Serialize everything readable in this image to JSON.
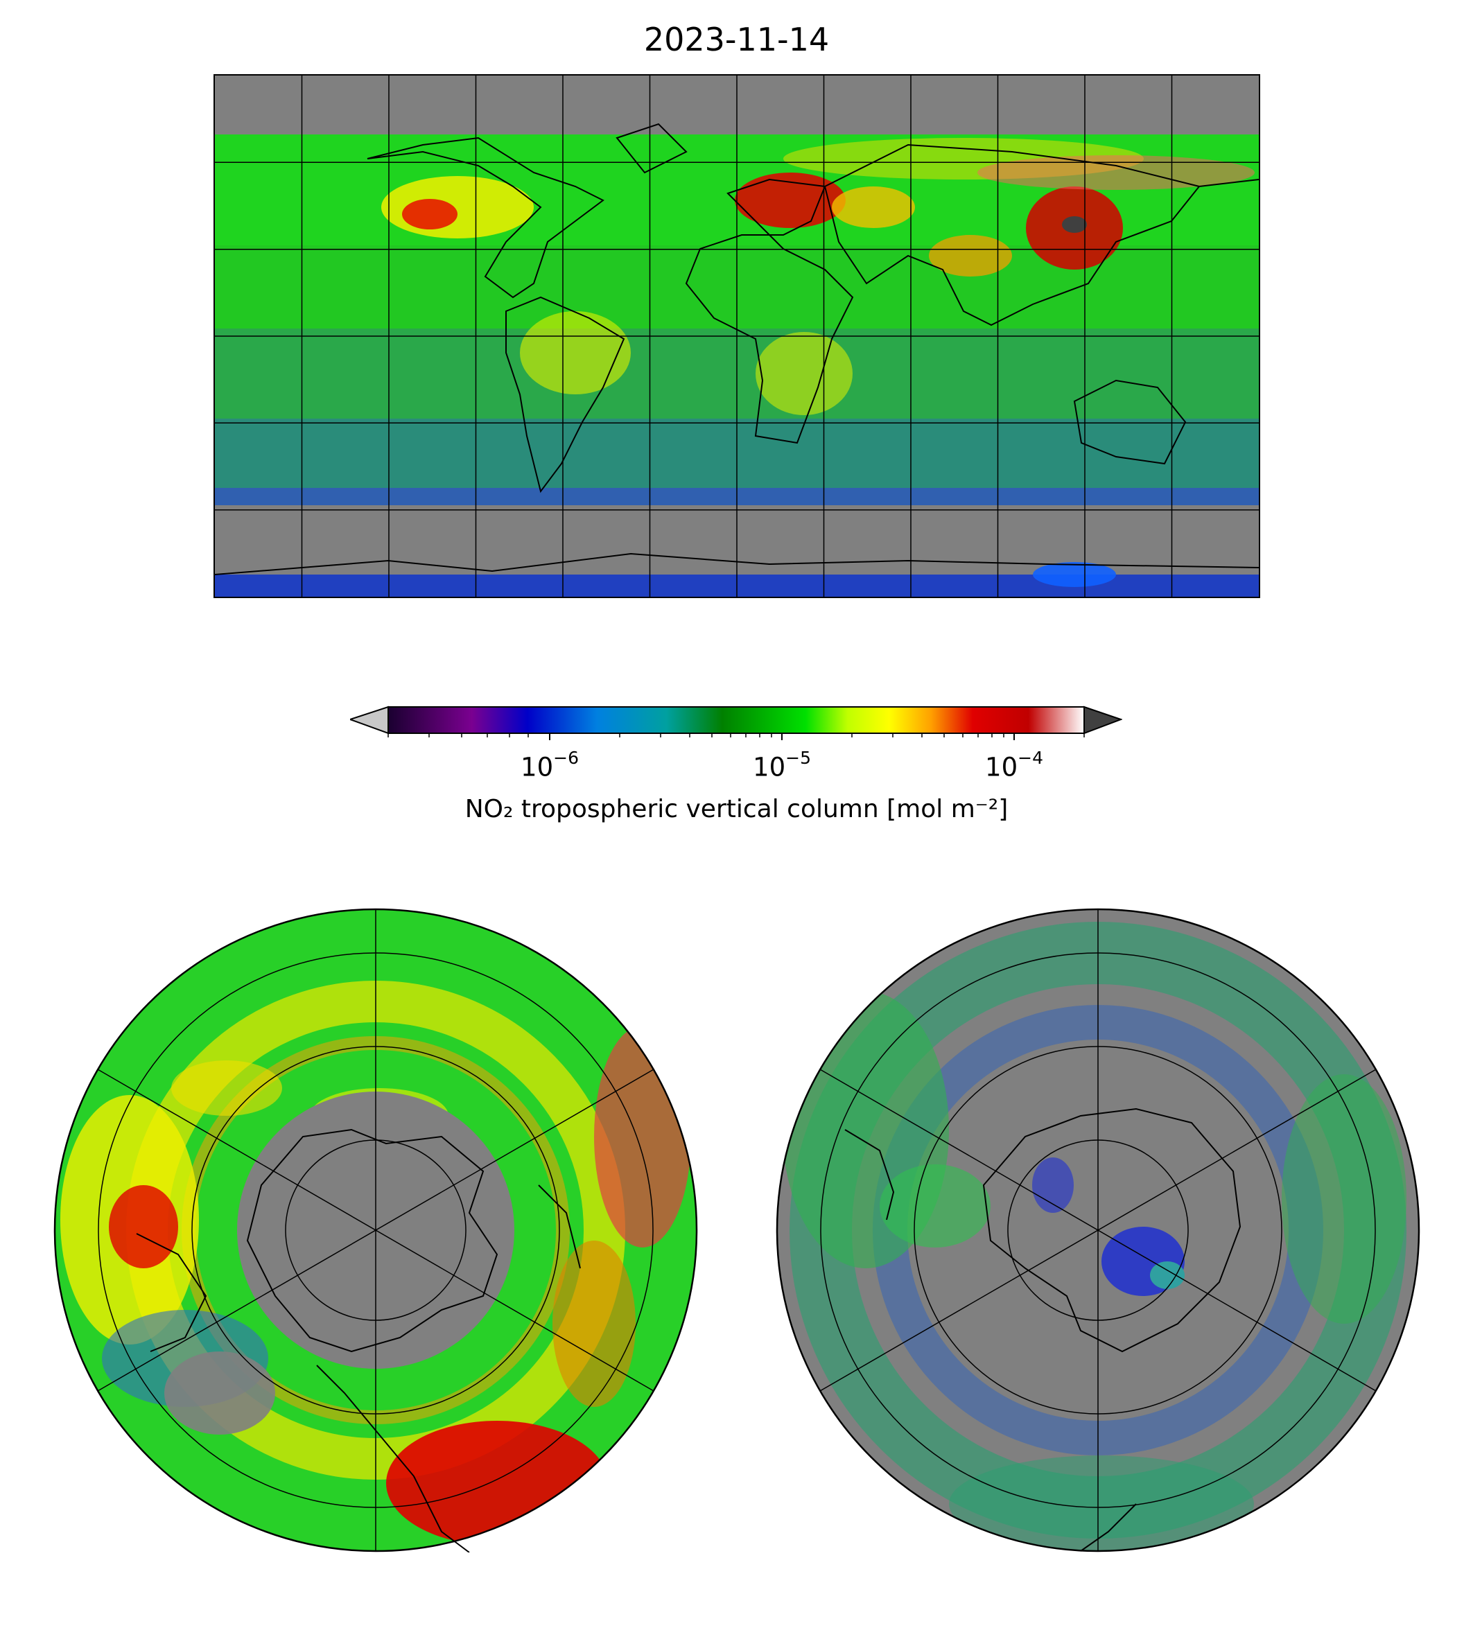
{
  "title": "2023-11-14",
  "colorbar": {
    "label": "NO₂ tropospheric vertical column [mol m⁻²]",
    "scale": "log",
    "range": [
      2e-07,
      0.0002
    ],
    "extend": "both",
    "ticks": [
      {
        "value": 1e-06,
        "base": "10",
        "exp": "−6"
      },
      {
        "value": 1e-05,
        "base": "10",
        "exp": "−5"
      },
      {
        "value": 0.0001,
        "base": "10",
        "exp": "−4"
      }
    ],
    "colors": [
      "#1a0030",
      "#7a0090",
      "#0000c8",
      "#0080e0",
      "#00a0a0",
      "#008000",
      "#00e000",
      "#c0ff00",
      "#ffff00",
      "#ffa000",
      "#e00000",
      "#c00000",
      "#ffffff"
    ],
    "under_color": "#c8c8c8",
    "over_color": "#404040"
  },
  "maps": [
    {
      "projection": "PlateCarree",
      "region": "global",
      "lon_range": [
        -180,
        180
      ],
      "lat_range": [
        -90,
        90
      ],
      "gridline_step_deg": 30
    },
    {
      "projection": "NorthPolarStereo",
      "region": "northern hemisphere"
    },
    {
      "projection": "SouthPolarStereo",
      "region": "southern hemisphere"
    }
  ],
  "no_data_color": "#808080"
}
